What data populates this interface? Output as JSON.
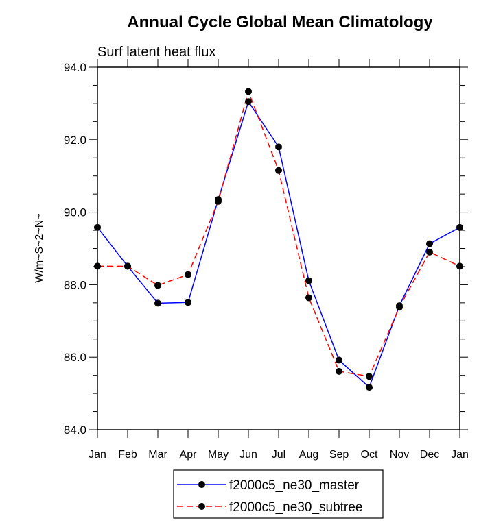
{
  "chart_data": {
    "type": "line",
    "title": "Annual Cycle Global Mean Climatology",
    "subtitle": "Surf latent heat flux",
    "xlabel": "",
    "ylabel": "W/m~S~2~N~",
    "categories": [
      "Jan",
      "Feb",
      "Mar",
      "Apr",
      "May",
      "Jun",
      "Jul",
      "Aug",
      "Sep",
      "Oct",
      "Nov",
      "Dec",
      "Jan"
    ],
    "ylim": [
      84.0,
      94.0
    ],
    "yticks": [
      "84.0",
      "86.0",
      "88.0",
      "90.0",
      "92.0",
      "94.0"
    ],
    "grid": false,
    "legend_position": "bottom-center",
    "series": [
      {
        "name": "f2000c5_ne30_master",
        "color": "#0000ff",
        "dash": "solid",
        "values": [
          89.58,
          88.51,
          87.49,
          87.51,
          90.35,
          93.05,
          91.8,
          88.11,
          85.92,
          85.17,
          87.42,
          89.13,
          89.58
        ]
      },
      {
        "name": "f2000c5_ne30_subtree",
        "color": "#ff0000",
        "dash": "dashed",
        "values": [
          88.51,
          88.51,
          87.98,
          88.28,
          90.3,
          93.33,
          91.15,
          87.64,
          85.61,
          85.47,
          87.38,
          88.9,
          88.51
        ]
      }
    ]
  }
}
